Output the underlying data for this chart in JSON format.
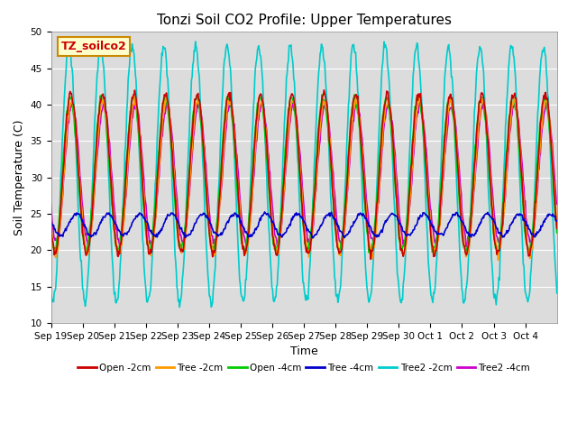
{
  "title": "Tonzi Soil CO2 Profile: Upper Temperatures",
  "xlabel": "Time",
  "ylabel": "Soil Temperature (C)",
  "ylim": [
    10,
    50
  ],
  "yticks": [
    10,
    15,
    20,
    25,
    30,
    35,
    40,
    45,
    50
  ],
  "background_color": "#dcdcdc",
  "legend_label": "TZ_soilco2",
  "series_labels": [
    "Open -2cm",
    "Tree -2cm",
    "Open -4cm",
    "Tree -4cm",
    "Tree2 -2cm",
    "Tree2 -4cm"
  ],
  "series_colors": [
    "#cc0000",
    "#ff9900",
    "#00cc00",
    "#0000cc",
    "#00cccc",
    "#cc00cc"
  ],
  "n_days": 16,
  "points_per_day": 48,
  "xtick_labels": [
    "Sep 19",
    "Sep 20",
    "Sep 21",
    "Sep 22",
    "Sep 23",
    "Sep 24",
    "Sep 25",
    "Sep 26",
    "Sep 27",
    "Sep 28",
    "Sep 29",
    "Sep 30",
    "Oct 1",
    "Oct 2",
    "Oct 3",
    "Oct 4"
  ],
  "open_2cm": {
    "base": 30.5,
    "amp": 11.0,
    "phase": 0.38
  },
  "tree_2cm": {
    "base": 30.0,
    "amp": 10.5,
    "phase": 0.4
  },
  "open_4cm": {
    "base": 30.5,
    "amp": 10.5,
    "phase": 0.36
  },
  "tree_4cm": {
    "base": 23.5,
    "amp": 1.5,
    "phase": 0.55
  },
  "tree2_2cm": {
    "base": 30.5,
    "amp": 17.5,
    "phase": 0.32
  },
  "tree2_4cm": {
    "base": 30.5,
    "amp": 9.5,
    "phase": 0.42
  }
}
